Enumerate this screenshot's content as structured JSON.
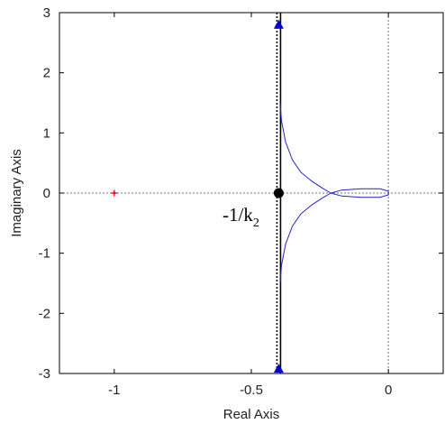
{
  "chart_data": {
    "type": "line",
    "title": "",
    "xlabel": "Real Axis",
    "ylabel": "Imaginary Axis",
    "xlim": [
      -1.2,
      0.2
    ],
    "ylim": [
      -3,
      3
    ],
    "xticks": [
      -1,
      -0.5,
      0
    ],
    "xtick_labels": [
      "-1",
      "-0.5",
      "0"
    ],
    "yticks": [
      -3,
      -2,
      -1,
      0,
      1,
      2,
      3
    ],
    "ytick_labels": [
      "-3",
      "-2",
      "-1",
      "0",
      "1",
      "2",
      "3"
    ],
    "grid": false,
    "reference_lines": [
      {
        "orientation": "horizontal",
        "value": 0,
        "style": "dotted",
        "color": "#777777"
      },
      {
        "orientation": "vertical",
        "value": 0,
        "style": "dotted",
        "color": "#777777"
      }
    ],
    "vertical_line": {
      "x": -0.4,
      "color": "#000000",
      "style": "solid+dotted"
    },
    "series": [
      {
        "color": "#2222cc",
        "points": [
          [
            -0.395,
            1.5
          ],
          [
            -0.39,
            1.2
          ],
          [
            -0.375,
            0.85
          ],
          [
            -0.35,
            0.55
          ],
          [
            -0.32,
            0.35
          ],
          [
            -0.28,
            0.2
          ],
          [
            -0.24,
            0.08
          ],
          [
            -0.21,
            0.0
          ],
          [
            -0.17,
            0.05
          ],
          [
            -0.1,
            0.07
          ],
          [
            -0.03,
            0.07
          ],
          [
            0.0,
            0.03
          ],
          [
            0.0,
            -0.03
          ],
          [
            -0.03,
            -0.07
          ],
          [
            -0.1,
            -0.07
          ],
          [
            -0.17,
            -0.05
          ],
          [
            -0.21,
            0.0
          ],
          [
            -0.24,
            -0.08
          ],
          [
            -0.28,
            -0.2
          ],
          [
            -0.32,
            -0.35
          ],
          [
            -0.35,
            -0.55
          ],
          [
            -0.375,
            -0.85
          ],
          [
            -0.39,
            -1.2
          ],
          [
            -0.395,
            -1.5
          ]
        ]
      }
    ],
    "markers": [
      {
        "name": "red-point",
        "x": -1,
        "y": 0,
        "shape": "star",
        "color": "#ff0000"
      },
      {
        "name": "black-point",
        "x": -0.4,
        "y": 0,
        "shape": "circle",
        "color": "#000000"
      },
      {
        "name": "top-triangle",
        "x": -0.4,
        "y": 2.8,
        "shape": "triangle-up",
        "color": "#0000cc"
      },
      {
        "name": "bottom-triangle",
        "x": -0.4,
        "y": -2.92,
        "shape": "triangle-up",
        "color": "#0000cc"
      }
    ],
    "annotation": {
      "text": "-1/k",
      "subscript": "2",
      "x": -0.4,
      "y": 0
    }
  }
}
